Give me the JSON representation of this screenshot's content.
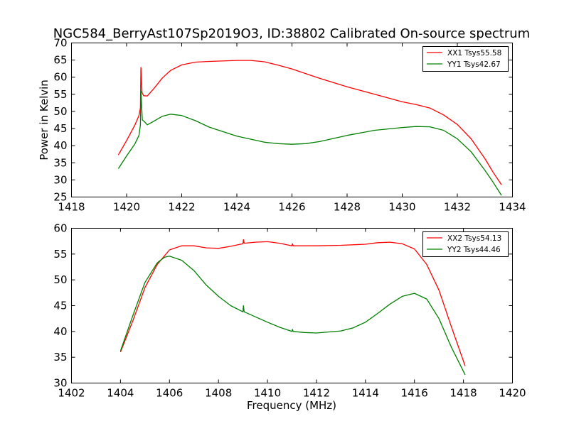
{
  "chart_data": [
    {
      "type": "line",
      "title": "NGC584_BerryAst107Sp2019O3, ID:38802 Calibrated On-source spectrum",
      "xlabel": "",
      "ylabel": "Power in Kelvin",
      "xlim": [
        1418,
        1434
      ],
      "ylim": [
        25,
        70
      ],
      "xticks": [
        "1418",
        "1420",
        "1422",
        "1424",
        "1426",
        "1428",
        "1430",
        "1432",
        "1434"
      ],
      "yticks": [
        "25",
        "30",
        "35",
        "40",
        "45",
        "50",
        "55",
        "60",
        "65",
        "70"
      ],
      "legend_position": "top-right",
      "series": [
        {
          "name": "XX1 Tsys55.58",
          "color": "#ff0000",
          "points": [
            [
              1419.7,
              37.3
            ],
            [
              1420.0,
              41.5
            ],
            [
              1420.3,
              46.0
            ],
            [
              1420.45,
              48.8
            ],
            [
              1420.5,
              51.0
            ],
            [
              1420.52,
              62.8
            ],
            [
              1420.56,
              55.5
            ],
            [
              1420.62,
              54.6
            ],
            [
              1420.75,
              54.5
            ],
            [
              1421.0,
              56.8
            ],
            [
              1421.3,
              59.8
            ],
            [
              1421.6,
              62.0
            ],
            [
              1422.0,
              63.6
            ],
            [
              1422.5,
              64.4
            ],
            [
              1423.0,
              64.6
            ],
            [
              1424.0,
              64.9
            ],
            [
              1424.5,
              64.9
            ],
            [
              1425.0,
              64.5
            ],
            [
              1425.5,
              63.5
            ],
            [
              1426.0,
              62.4
            ],
            [
              1427.0,
              59.7
            ],
            [
              1428.0,
              57.2
            ],
            [
              1429.0,
              55.0
            ],
            [
              1430.0,
              52.8
            ],
            [
              1430.5,
              52.0
            ],
            [
              1431.0,
              51.0
            ],
            [
              1431.5,
              49.0
            ],
            [
              1432.0,
              46.2
            ],
            [
              1432.5,
              42.0
            ],
            [
              1433.0,
              36.2
            ],
            [
              1433.3,
              32.2
            ],
            [
              1433.6,
              28.6
            ]
          ]
        },
        {
          "name": "YY1 Tsys42.67",
          "color": "#008000",
          "points": [
            [
              1419.7,
              33.3
            ],
            [
              1420.0,
              37.0
            ],
            [
              1420.3,
              40.5
            ],
            [
              1420.45,
              43.0
            ],
            [
              1420.5,
              46.0
            ],
            [
              1420.52,
              56.0
            ],
            [
              1420.57,
              47.5
            ],
            [
              1420.65,
              47.0
            ],
            [
              1420.75,
              46.1
            ],
            [
              1421.0,
              47.2
            ],
            [
              1421.3,
              48.6
            ],
            [
              1421.6,
              49.2
            ],
            [
              1422.0,
              48.8
            ],
            [
              1422.5,
              47.3
            ],
            [
              1423.0,
              45.4
            ],
            [
              1424.0,
              42.8
            ],
            [
              1425.0,
              41.0
            ],
            [
              1425.5,
              40.6
            ],
            [
              1426.0,
              40.4
            ],
            [
              1426.5,
              40.6
            ],
            [
              1427.0,
              41.2
            ],
            [
              1428.0,
              43.0
            ],
            [
              1429.0,
              44.5
            ],
            [
              1430.0,
              45.3
            ],
            [
              1430.5,
              45.6
            ],
            [
              1431.0,
              45.5
            ],
            [
              1431.5,
              44.5
            ],
            [
              1432.0,
              42.0
            ],
            [
              1432.5,
              38.2
            ],
            [
              1433.0,
              32.8
            ],
            [
              1433.3,
              29.3
            ],
            [
              1433.6,
              25.5
            ]
          ]
        }
      ]
    },
    {
      "type": "line",
      "title": "",
      "xlabel": "Frequency (MHz)",
      "ylabel": "",
      "xlim": [
        1402,
        1420
      ],
      "ylim": [
        30,
        60
      ],
      "xticks": [
        "1402",
        "1404",
        "1406",
        "1408",
        "1410",
        "1412",
        "1414",
        "1416",
        "1418",
        "1420"
      ],
      "yticks": [
        "30",
        "35",
        "40",
        "45",
        "50",
        "55",
        "60"
      ],
      "legend_position": "top-right",
      "series": [
        {
          "name": "XX2 Tsys54.13",
          "color": "#ff0000",
          "points": [
            [
              1404.0,
              36.0
            ],
            [
              1404.5,
              42.0
            ],
            [
              1405.0,
              48.5
            ],
            [
              1405.5,
              53.0
            ],
            [
              1406.0,
              55.8
            ],
            [
              1406.5,
              56.6
            ],
            [
              1407.0,
              56.6
            ],
            [
              1407.5,
              56.2
            ],
            [
              1408.0,
              56.1
            ],
            [
              1408.5,
              56.5
            ],
            [
              1409.0,
              57.0
            ],
            [
              1409.02,
              57.8
            ],
            [
              1409.05,
              57.1
            ],
            [
              1409.5,
              57.3
            ],
            [
              1410.0,
              57.4
            ],
            [
              1410.5,
              57.1
            ],
            [
              1411.0,
              56.6
            ],
            [
              1411.02,
              57.0
            ],
            [
              1411.05,
              56.6
            ],
            [
              1412.0,
              56.6
            ],
            [
              1413.0,
              56.7
            ],
            [
              1414.0,
              56.9
            ],
            [
              1414.5,
              57.2
            ],
            [
              1415.0,
              57.3
            ],
            [
              1415.5,
              57.0
            ],
            [
              1416.0,
              56.0
            ],
            [
              1416.5,
              53.0
            ],
            [
              1417.0,
              48.0
            ],
            [
              1417.5,
              41.0
            ],
            [
              1418.07,
              33.3
            ]
          ]
        },
        {
          "name": "YY2 Tsys44.46",
          "color": "#008000",
          "points": [
            [
              1404.0,
              36.2
            ],
            [
              1404.5,
              43.0
            ],
            [
              1405.0,
              49.5
            ],
            [
              1405.5,
              53.3
            ],
            [
              1405.8,
              54.4
            ],
            [
              1406.0,
              54.6
            ],
            [
              1406.5,
              53.8
            ],
            [
              1407.0,
              51.8
            ],
            [
              1407.5,
              49.0
            ],
            [
              1408.0,
              46.8
            ],
            [
              1408.5,
              45.0
            ],
            [
              1409.0,
              43.8
            ],
            [
              1409.02,
              45.0
            ],
            [
              1409.05,
              43.8
            ],
            [
              1410.0,
              41.8
            ],
            [
              1410.5,
              40.8
            ],
            [
              1411.0,
              40.0
            ],
            [
              1411.02,
              40.4
            ],
            [
              1411.05,
              40.0
            ],
            [
              1411.5,
              39.8
            ],
            [
              1412.0,
              39.7
            ],
            [
              1413.0,
              40.1
            ],
            [
              1413.5,
              40.7
            ],
            [
              1414.0,
              41.8
            ],
            [
              1414.5,
              43.5
            ],
            [
              1415.0,
              45.3
            ],
            [
              1415.5,
              46.8
            ],
            [
              1416.0,
              47.4
            ],
            [
              1416.5,
              46.3
            ],
            [
              1417.0,
              42.5
            ],
            [
              1417.5,
              37.0
            ],
            [
              1418.07,
              31.6
            ]
          ]
        }
      ]
    }
  ]
}
